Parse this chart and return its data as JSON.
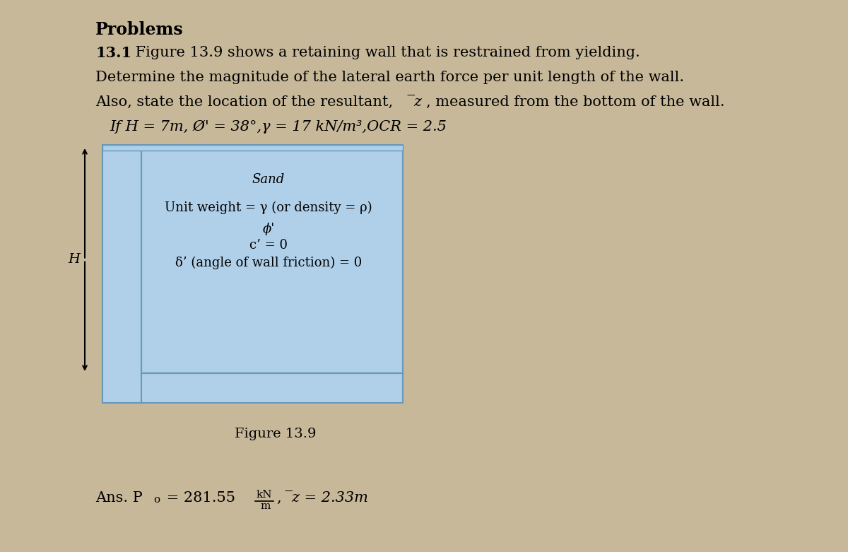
{
  "background_color": "#c8b89a",
  "wall_fill_color": "#b0cfe8",
  "wall_edge_color": "#6699bb",
  "title": "Problems",
  "line1_bold": "13.1",
  "line1_rest": " Figure 13.9 shows a retaining wall that is restrained from yielding.",
  "line2": "Determine the magnitude of the lateral earth force per unit length of the wall.",
  "line3a": "Also, state the location of the resultant, ",
  "line3b": ", measured from the bottom of the wall.",
  "line4": "If H = 7m, Ø' = 38°,γ = 17 kN/m³,OCR = 2.5",
  "sand_label": "Sand",
  "unit_weight_text": "Unit weight = γ (or density = ρ)",
  "phi_text": "ϕ'",
  "c_text": "c’ = 0",
  "friction_text": "δ’ (angle of wall friction) = 0",
  "H_label": "H",
  "figure_label": "Figure 13.9",
  "ans_prefix": "Ans. P",
  "ans_sub": "o",
  "ans_value": " = 281.55",
  "ans_kN": "kN",
  "ans_m": "m",
  "ans_z": "̅z = 2.33m",
  "fs_title": 17,
  "fs_body": 15,
  "fs_fig_text": 13,
  "fs_ans": 15,
  "fs_small": 11
}
